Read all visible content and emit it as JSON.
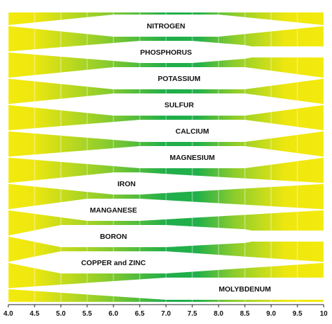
{
  "chart_data": {
    "type": "bar",
    "title": "",
    "xlabel": "",
    "ylabel": "",
    "xlim": [
      4.0,
      10.0
    ],
    "x_ticks": [
      "4.0",
      "4.5",
      "5.0",
      "5.5",
      "6.0",
      "6.5",
      "7.0",
      "7.5",
      "8.0",
      "8.5",
      "9.0",
      "9.5",
      "10"
    ],
    "grid": true,
    "nutrients": [
      {
        "name": "NITROGEN",
        "thin_left": [
          4.0,
          6.0
        ],
        "thin_right": [
          8.0,
          10.0
        ]
      },
      {
        "name": "PHOSPHORUS",
        "thin_left": [
          4.0,
          6.5
        ],
        "thin_right": [
          7.5,
          8.5
        ],
        "step_right": [
          8.5,
          10.0
        ]
      },
      {
        "name": "POTASSIUM",
        "thin_left": [
          4.0,
          6.0
        ],
        "thin_right": [
          8.5,
          10.0
        ]
      },
      {
        "name": "SULFUR",
        "thin_left": [
          4.0,
          6.0
        ],
        "thin_right": [
          8.5,
          10.0
        ]
      },
      {
        "name": "CALCIUM",
        "thin_left": [
          4.0,
          6.5
        ],
        "thin_right": [
          8.5,
          10.0
        ]
      },
      {
        "name": "MAGNESIUM",
        "thin_left": [
          4.0,
          6.5
        ],
        "thin_right": [
          8.5,
          10.0
        ]
      },
      {
        "name": "IRON",
        "thin_left": [
          4.0,
          6.0
        ],
        "thin_right": [
          6.5,
          10.0
        ]
      },
      {
        "name": "MANGANESE",
        "thin_left": [
          4.0,
          5.5
        ],
        "thin_right": [
          6.5,
          10.0
        ]
      },
      {
        "name": "BORON",
        "thin_left": [
          4.0,
          5.0
        ],
        "thin_right": [
          7.0,
          8.5
        ],
        "step_right": [
          8.5,
          10.0
        ]
      },
      {
        "name": "COPPER and ZINC",
        "thin_left": [
          4.0,
          5.0
        ],
        "thin_right": [
          7.0,
          10.0
        ]
      },
      {
        "name": "MOLYBDENUM",
        "thin_left": [
          4.0,
          7.0
        ],
        "thin_right": null
      }
    ]
  },
  "colors": {
    "edge_yellow": "#f3ea0d",
    "mid_green": "#1fae4a",
    "band_white": "#ffffff",
    "grid_line": "#ffffff",
    "axis": "#222222",
    "label_text": "#111111"
  }
}
